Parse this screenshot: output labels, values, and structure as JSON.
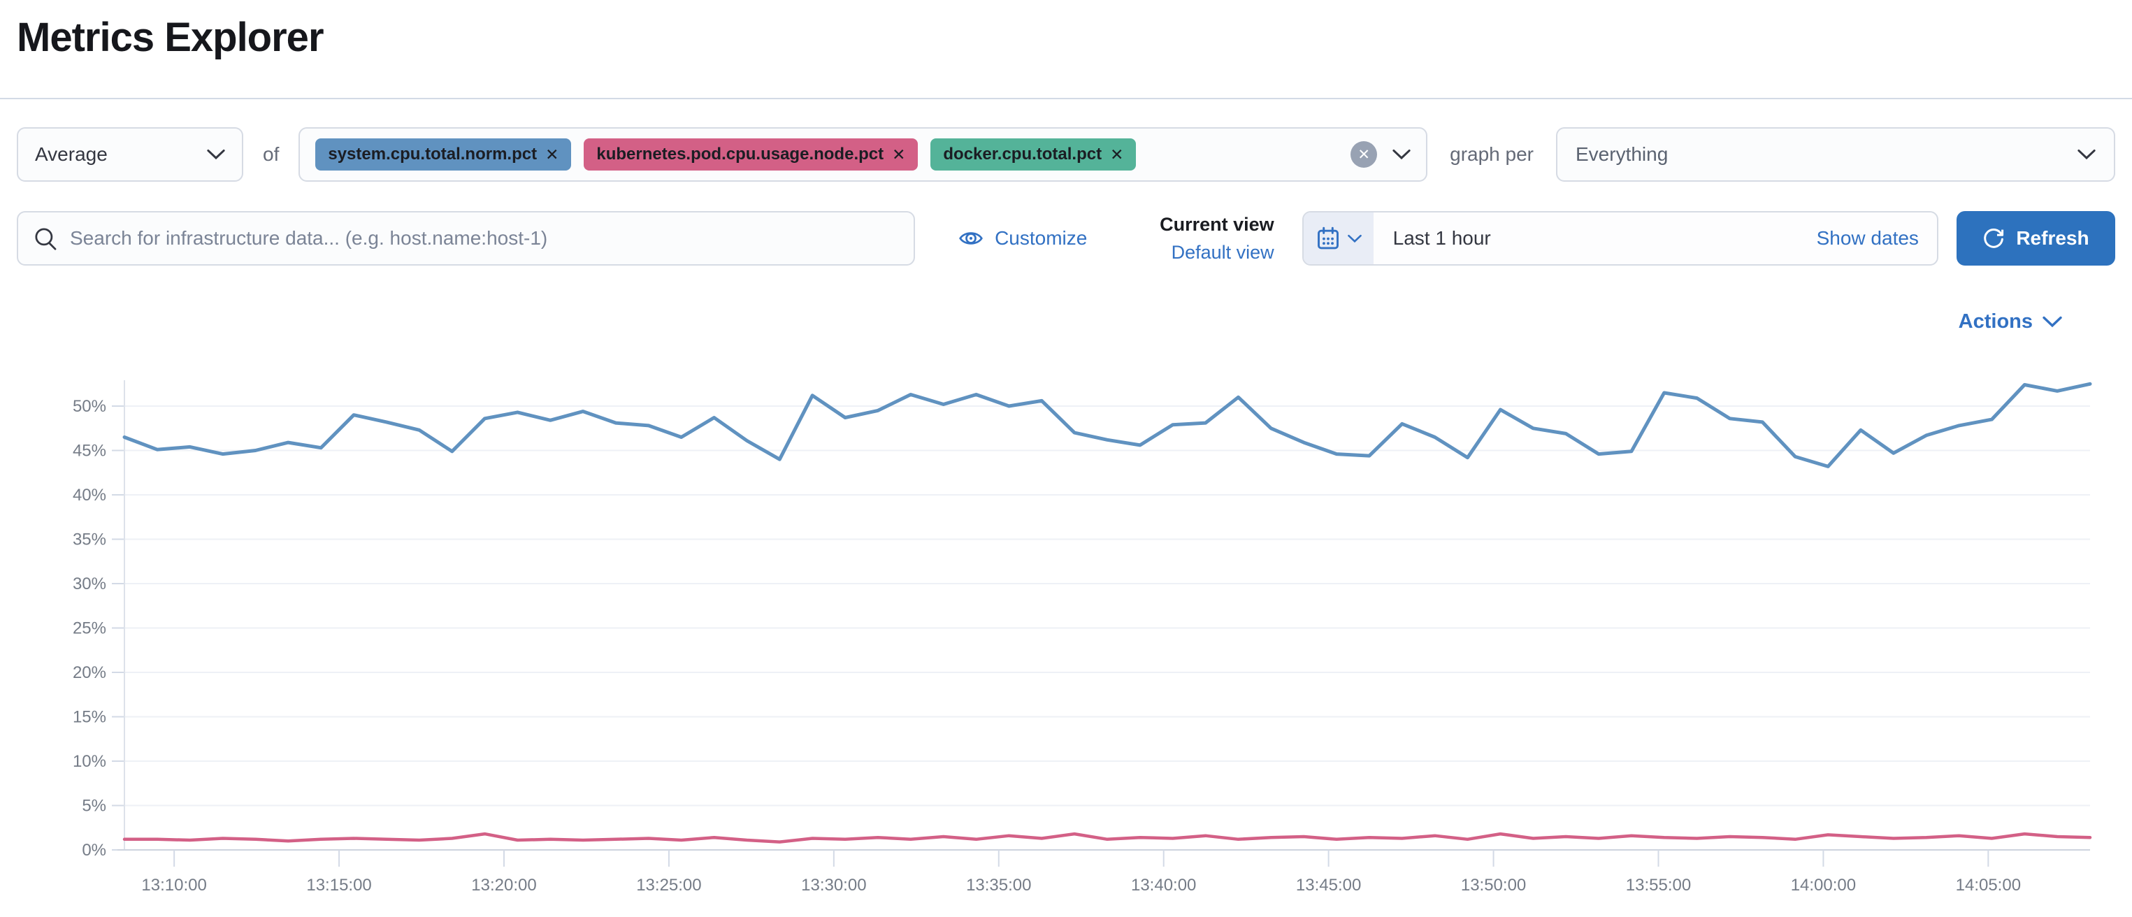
{
  "header": {
    "title": "Metrics Explorer"
  },
  "metric_row": {
    "aggregation_value": "Average",
    "of_label": "of",
    "metrics": [
      {
        "label": "system.cpu.total.norm.pct",
        "color": "#6092C0"
      },
      {
        "label": "kubernetes.pod.cpu.usage.node.pct",
        "color": "#D36086"
      },
      {
        "label": "docker.cpu.total.pct",
        "color": "#54B399"
      }
    ],
    "remove_glyph": "✕",
    "clear_glyph": "✕",
    "graph_per_label": "graph per",
    "group_by_value": "Everything"
  },
  "search_row": {
    "search_placeholder": "Search for infrastructure data... (e.g. host.name:host-1)",
    "customize_label": "Customize",
    "current_view_label": "Current view",
    "selected_view": "Default view",
    "time_range_value": "Last 1 hour",
    "show_dates_label": "Show dates",
    "refresh_label": "Refresh"
  },
  "actions_label": "Actions",
  "colors": {
    "link_blue": "#3271C3",
    "button_blue": "#2D72BE",
    "badge_blue": "#6092C0",
    "badge_pink": "#D36086",
    "badge_green": "#54B399"
  },
  "chart_data": {
    "type": "line",
    "title": "",
    "xlabel": "",
    "ylabel": "",
    "ylim": [
      0,
      53
    ],
    "grid": true,
    "legend": false,
    "y_ticks": [
      "0%",
      "5%",
      "10%",
      "15%",
      "20%",
      "25%",
      "30%",
      "35%",
      "40%",
      "45%",
      "50%"
    ],
    "x_ticks": [
      "13:10:00",
      "13:15:00",
      "13:20:00",
      "13:25:00",
      "13:30:00",
      "13:35:00",
      "13:40:00",
      "13:45:00",
      "13:50:00",
      "13:55:00",
      "14:00:00",
      "14:05:00"
    ],
    "x_tick_first_frac": 0.0253,
    "x_tick_step_frac": 0.0839,
    "series": [
      {
        "name": "system.cpu.total.norm.pct (avg)",
        "color": "#6092C0",
        "unit": "%",
        "values": [
          46.5,
          45.1,
          45.4,
          44.6,
          45.0,
          45.9,
          45.3,
          49.0,
          48.2,
          47.3,
          44.9,
          48.6,
          49.3,
          48.4,
          49.4,
          48.1,
          47.8,
          46.5,
          48.7,
          46.1,
          44.0,
          51.2,
          48.7,
          49.5,
          51.3,
          50.2,
          51.3,
          50.0,
          50.6,
          47.0,
          46.2,
          45.6,
          47.9,
          48.1,
          51.0,
          47.5,
          45.9,
          44.6,
          44.4,
          48.0,
          46.5,
          44.2,
          49.6,
          47.5,
          46.9,
          44.6,
          44.9,
          51.5,
          50.9,
          48.6,
          48.2,
          44.3,
          43.2,
          47.3,
          44.7,
          46.7,
          47.8,
          48.5,
          52.4,
          51.7,
          52.5
        ]
      },
      {
        "name": "kubernetes.pod.cpu.usage.node.pct (avg)",
        "color": "#D36086",
        "unit": "%",
        "values": [
          1.2,
          1.2,
          1.1,
          1.3,
          1.2,
          1.0,
          1.2,
          1.3,
          1.2,
          1.1,
          1.3,
          1.8,
          1.1,
          1.2,
          1.1,
          1.2,
          1.3,
          1.1,
          1.4,
          1.1,
          0.9,
          1.3,
          1.2,
          1.4,
          1.2,
          1.5,
          1.2,
          1.6,
          1.3,
          1.8,
          1.2,
          1.4,
          1.3,
          1.6,
          1.2,
          1.4,
          1.5,
          1.2,
          1.4,
          1.3,
          1.6,
          1.2,
          1.8,
          1.3,
          1.5,
          1.3,
          1.6,
          1.4,
          1.3,
          1.5,
          1.4,
          1.2,
          1.7,
          1.5,
          1.3,
          1.4,
          1.6,
          1.3,
          1.8,
          1.5,
          1.4
        ]
      }
    ]
  }
}
